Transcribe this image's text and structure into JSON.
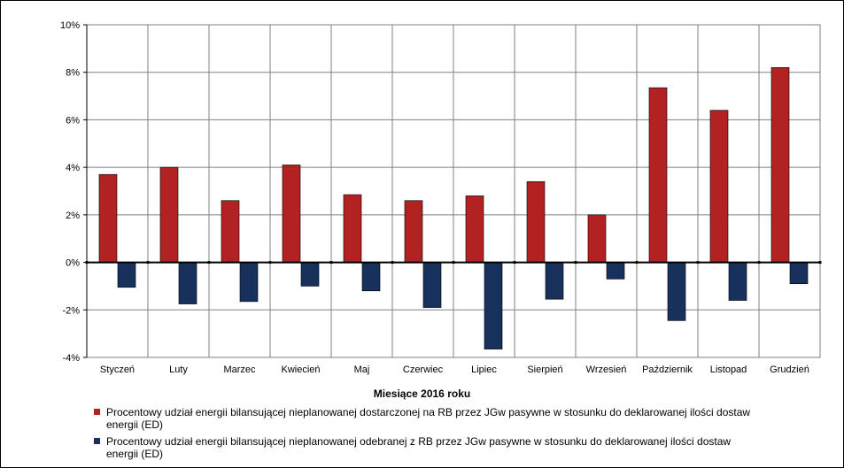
{
  "chart_data": {
    "type": "bar",
    "xlabel": "Miesiące 2016  roku",
    "ylabel": "",
    "ylim": [
      -4,
      10
    ],
    "yticks": [
      10,
      8,
      6,
      4,
      2,
      0,
      -2,
      -4
    ],
    "ytick_suffix": "%",
    "grid": true,
    "legend_position": "bottom",
    "categories": [
      "Styczeń",
      "Luty",
      "Marzec",
      "Kwiecień",
      "Maj",
      "Czerwiec",
      "Lipiec",
      "Sierpień",
      "Wrzesień",
      "Październik",
      "Listopad",
      "Grudzień"
    ],
    "series": [
      {
        "name": "Procentowy udział energii bilansującej nieplanowanej dostarczonej na RB przez JGw pasywne w stosunku do deklarowanej ilości dostaw energii (ED)",
        "color": "#b22222",
        "values": [
          3.7,
          4.0,
          2.6,
          4.1,
          2.85,
          2.6,
          2.8,
          3.4,
          2.0,
          7.35,
          6.4,
          8.2
        ]
      },
      {
        "name": "Procentowy udział energii bilansującej nieplanowanej odebranej z RB przez JGw pasywne w stosunku do deklarowanej ilości dostaw energii (ED)",
        "color": "#17305c",
        "values": [
          -1.05,
          -1.75,
          -1.65,
          -1.0,
          -1.2,
          -1.9,
          -3.65,
          -1.55,
          -0.7,
          -2.45,
          -1.6,
          -0.9
        ]
      }
    ]
  }
}
